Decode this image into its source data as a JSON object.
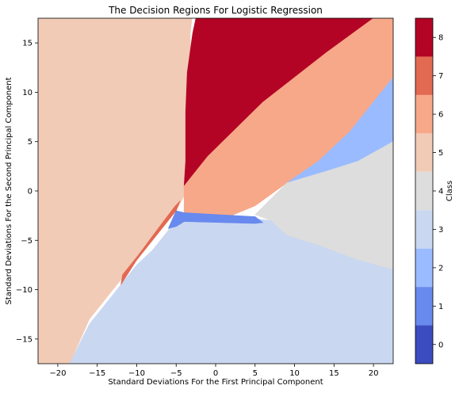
{
  "chart_data": {
    "type": "heatmap",
    "subtype": "filled-contour decision regions",
    "title": "The Decision Regions For Logistic Regression",
    "xlabel": "Standard Deviations For the First Principal Component",
    "ylabel": "Standard Deviations For the Second Principal Component",
    "xlim": [
      -22.5,
      22.5
    ],
    "ylim": [
      -17.5,
      17.5
    ],
    "xticks": [
      -20,
      -15,
      -10,
      -5,
      0,
      5,
      10,
      15,
      20
    ],
    "yticks": [
      -15,
      -10,
      -5,
      0,
      5,
      10,
      15
    ],
    "colorbar": {
      "label": "Class",
      "range": [
        -0.5,
        8.5
      ],
      "ticks": [
        0,
        1,
        2,
        3,
        4,
        5,
        6,
        7,
        8
      ],
      "colors": [
        "#3b4cc0",
        "#6889ee",
        "#9abbff",
        "#c9d7f0",
        "#dddddd",
        "#f2cbb7",
        "#f7a889",
        "#e26952",
        "#b40426"
      ]
    },
    "regions": [
      {
        "class": 5,
        "polygon": [
          [
            -22.5,
            17.5
          ],
          [
            -3,
            17.5
          ],
          [
            -3.2,
            16
          ],
          [
            -3.2,
            0.5
          ],
          [
            -4,
            -0.5
          ],
          [
            -5,
            -2
          ],
          [
            -7,
            -4
          ],
          [
            -10,
            -7
          ],
          [
            -12,
            -9
          ],
          [
            -14,
            -11
          ],
          [
            -16,
            -13
          ],
          [
            -18.5,
            -17.5
          ],
          [
            -22.5,
            -17.5
          ]
        ]
      },
      {
        "class": 8,
        "polygon": [
          [
            -2.5,
            17.5
          ],
          [
            20,
            17.5
          ],
          [
            14,
            14
          ],
          [
            6,
            9
          ],
          [
            -1,
            3.5
          ],
          [
            -4,
            0.5
          ],
          [
            -3.8,
            3
          ],
          [
            -3.8,
            8
          ],
          [
            -3.6,
            12
          ],
          [
            -2.9,
            16
          ]
        ]
      },
      {
        "class": 6,
        "polygon": [
          [
            20,
            17.5
          ],
          [
            22.5,
            17.5
          ],
          [
            22.5,
            11.5
          ],
          [
            17,
            6
          ],
          [
            13,
            3
          ],
          [
            9,
            0.8
          ],
          [
            5,
            -1.5
          ],
          [
            2,
            -2.5
          ],
          [
            -4,
            -2.3
          ],
          [
            -4,
            0.5
          ],
          [
            -1,
            3.5
          ],
          [
            6,
            9
          ],
          [
            14,
            14
          ]
        ]
      },
      {
        "class": 2,
        "polygon": [
          [
            22.5,
            11.5
          ],
          [
            22.5,
            5
          ],
          [
            18,
            3
          ],
          [
            14,
            2
          ],
          [
            9,
            0.8
          ],
          [
            13,
            3
          ],
          [
            17,
            6
          ]
        ]
      },
      {
        "class": 4,
        "polygon": [
          [
            22.5,
            5
          ],
          [
            22.5,
            -8
          ],
          [
            18,
            -7
          ],
          [
            13,
            -5.5
          ],
          [
            9,
            -4.5
          ],
          [
            7,
            -3
          ],
          [
            5,
            -2.4
          ],
          [
            9,
            0.8
          ],
          [
            14,
            2
          ],
          [
            18,
            3
          ]
        ]
      },
      {
        "class": 3,
        "polygon": [
          [
            -18.5,
            -17.5
          ],
          [
            22.5,
            -17.5
          ],
          [
            22.5,
            -8
          ],
          [
            18,
            -7
          ],
          [
            13,
            -5.5
          ],
          [
            9,
            -4.5
          ],
          [
            7,
            -3
          ],
          [
            5,
            -2.8
          ],
          [
            0,
            -2.5
          ],
          [
            -4,
            -2.5
          ],
          [
            -5,
            -2.8
          ],
          [
            -6,
            -4
          ],
          [
            -8,
            -6
          ],
          [
            -10,
            -7.5
          ],
          [
            -12,
            -9.5
          ],
          [
            -14,
            -11.5
          ],
          [
            -16,
            -13.5
          ]
        ]
      },
      {
        "class": 1,
        "polygon": [
          [
            -5,
            -2
          ],
          [
            -4,
            -2.2
          ],
          [
            5,
            -2.6
          ],
          [
            6,
            -3.2
          ],
          [
            5,
            -3.3
          ],
          [
            -4,
            -3.1
          ],
          [
            -5,
            -3.6
          ],
          [
            -6,
            -3.8
          ]
        ]
      },
      {
        "class": 7,
        "polygon": [
          [
            -4.5,
            -1
          ],
          [
            -5,
            -2
          ],
          [
            -7,
            -4
          ],
          [
            -10,
            -7
          ],
          [
            -12,
            -9.5
          ],
          [
            -11.8,
            -8.5
          ],
          [
            -9.8,
            -6.5
          ],
          [
            -7,
            -3.5
          ],
          [
            -5.2,
            -1.6
          ]
        ]
      }
    ]
  }
}
